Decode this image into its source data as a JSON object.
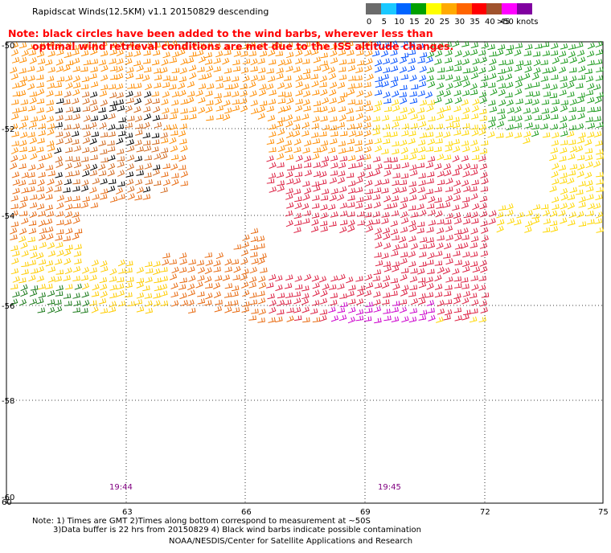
{
  "title": "Rapidscat Winds(12.5KM) v1.1 20150829 descending",
  "note_line1": "Note: black circles have been added to the wind barbs, wherever less than",
  "note_line2": "optimal wind retrieval conditions are met due to the ISS altitude changes.",
  "scale": {
    "colors": [
      "#6b6b6b",
      "#1ac8ff",
      "#0064ff",
      "#00a000",
      "#ffff00",
      "#ffaa00",
      "#ff6400",
      "#ff0000",
      "#a0522d",
      "#ff00ff",
      "#8000a0"
    ],
    "labels": [
      "0",
      "5",
      "10",
      "15",
      "20",
      "25",
      "30",
      "35",
      "40",
      "45"
    ],
    "unit": ">50 knots"
  },
  "map": {
    "lon_labels": [
      "60",
      "63",
      "66",
      "69",
      "72",
      "75"
    ],
    "lat_labels": [
      "-50",
      "-52",
      "-54",
      "-56",
      "-58",
      "-60"
    ],
    "time_labels": [
      "19:44",
      "19:45"
    ]
  },
  "footer_line1": "Note: 1) Times are GMT 2)Times along bottom correspond to measurement at ~50S",
  "footer_line2": "3)Data buffer is 22 hrs from 20150829 4) Black wind barbs indicate possible contamination",
  "footer_line3": "NOAA/NESDIS/Center for Satellite Applications and Research"
}
